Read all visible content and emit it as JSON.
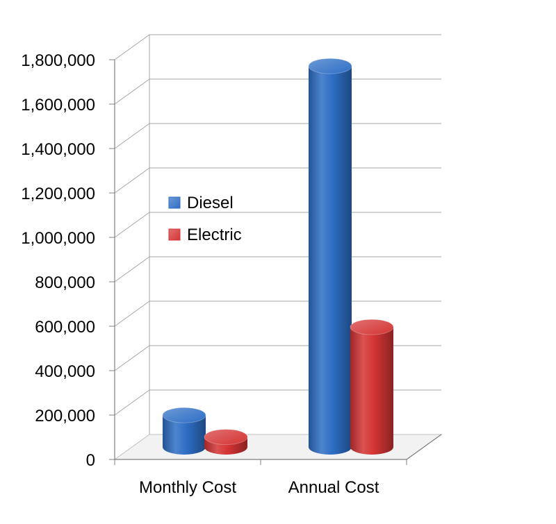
{
  "chart_data": {
    "type": "bar",
    "title": "",
    "xlabel": "",
    "ylabel": "",
    "categories": [
      "Monthly Cost",
      "Annual Cost"
    ],
    "series": [
      {
        "name": "Diesel",
        "values": [
          143000,
          1715000
        ],
        "color": "#2e6ec5"
      },
      {
        "name": "Electric",
        "values": [
          45000,
          540000
        ],
        "color": "#d43434"
      }
    ],
    "ylim": [
      0,
      1800000
    ],
    "yticks": [
      0,
      200000,
      400000,
      600000,
      800000,
      1000000,
      1200000,
      1400000,
      1600000,
      1800000
    ],
    "ytick_labels": [
      "0",
      "200,000",
      "400,000",
      "600,000",
      "800,000",
      "1,000,000",
      "1,200,000",
      "1,400,000",
      "1,600,000",
      "1,800,000"
    ],
    "grid": true,
    "style": "3d-cylinder",
    "legend": {
      "placement": "center-left"
    }
  }
}
